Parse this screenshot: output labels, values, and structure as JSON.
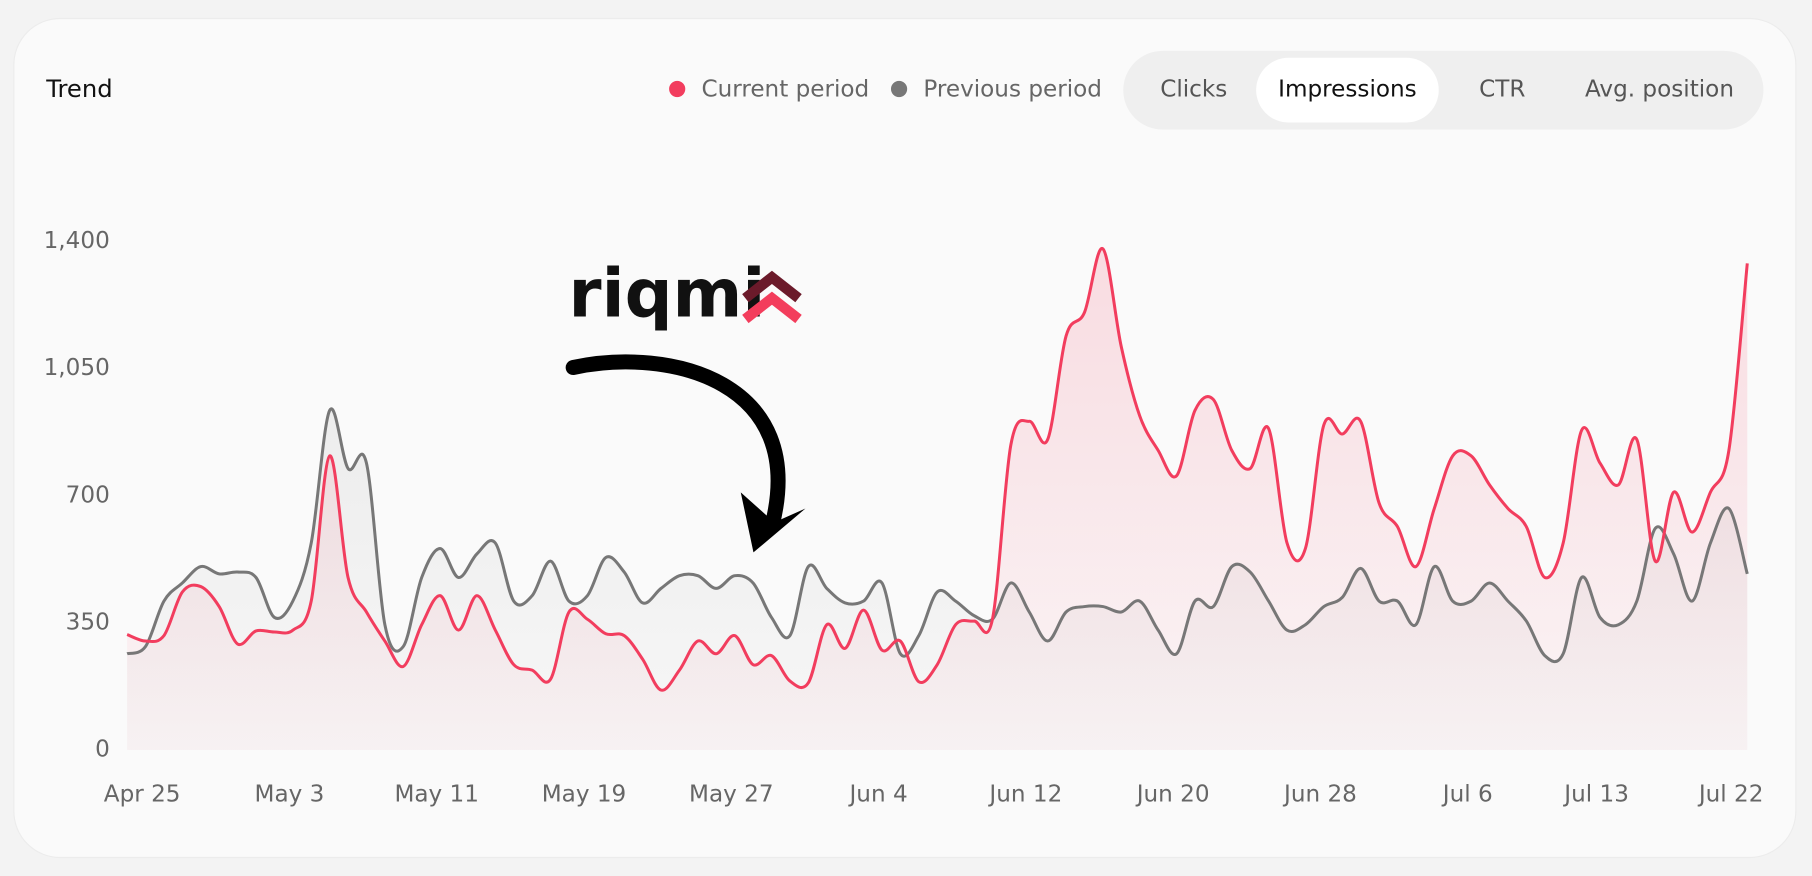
{
  "card": {
    "title": "Trend"
  },
  "tabs": {
    "items": [
      "Clicks",
      "Impressions",
      "CTR",
      "Avg. position"
    ],
    "selected": 1
  },
  "watermark": {
    "text": "riqmi"
  },
  "chart_data": {
    "type": "line",
    "categories": [
      "Apr 25",
      null,
      null,
      null,
      null,
      null,
      null,
      null,
      "May 3",
      null,
      null,
      null,
      null,
      null,
      null,
      null,
      "May 11",
      null,
      null,
      null,
      null,
      null,
      null,
      null,
      "May 19",
      null,
      null,
      null,
      null,
      null,
      null,
      null,
      "May 27",
      null,
      null,
      null,
      null,
      null,
      null,
      null,
      "Jun 4",
      null,
      null,
      null,
      null,
      null,
      null,
      null,
      "Jun 12",
      null,
      null,
      null,
      null,
      null,
      null,
      null,
      "Jun 20",
      null,
      null,
      null,
      null,
      null,
      null,
      null,
      "Jun 28",
      null,
      null,
      null,
      null,
      null,
      null,
      null,
      "Jul 6",
      null,
      null,
      null,
      null,
      null,
      null,
      "Jul 13",
      null,
      null,
      null,
      null,
      null,
      null,
      null,
      null,
      "Jul 22"
    ],
    "series": [
      {
        "name": "Current period",
        "color": "#f23d5e",
        "values": [
          318,
          300,
          315,
          435,
          450,
          395,
          292,
          328,
          325,
          330,
          410,
          810,
          475,
          380,
          300,
          230,
          345,
          425,
          330,
          425,
          330,
          235,
          220,
          195,
          380,
          360,
          320,
          315,
          250,
          165,
          220,
          300,
          265,
          315,
          235,
          260,
          190,
          185,
          345,
          280,
          385,
          275,
          300,
          188,
          235,
          345,
          355,
          360,
          840,
          905,
          855,
          1140,
          1205,
          1380,
          1110,
          920,
          825,
          755,
          935,
          965,
          825,
          775,
          885,
          570,
          555,
          895,
          870,
          905,
          680,
          615,
          505,
          665,
          810,
          810,
          730,
          665,
          615,
          475,
          570,
          880,
          790,
          730,
          855,
          520,
          710,
          600,
          710,
          825,
          1340
        ]
      },
      {
        "name": "Previous period",
        "color": "#777777",
        "values": [
          265,
          285,
          410,
          460,
          505,
          485,
          490,
          475,
          365,
          410,
          570,
          935,
          775,
          790,
          345,
          285,
          475,
          555,
          475,
          540,
          570,
          410,
          425,
          520,
          410,
          425,
          530,
          490,
          405,
          445,
          480,
          480,
          445,
          480,
          460,
          365,
          315,
          505,
          445,
          405,
          410,
          460,
          265,
          315,
          435,
          410,
          370,
          360,
          460,
          380,
          300,
          380,
          395,
          395,
          380,
          410,
          330,
          265,
          410,
          395,
          505,
          490,
          410,
          330,
          345,
          395,
          420,
          500,
          410,
          410,
          345,
          505,
          410,
          410,
          460,
          410,
          355,
          260,
          265,
          475,
          365,
          345,
          410,
          610,
          540,
          410,
          570,
          665,
          485
        ]
      }
    ],
    "ylim": [
      0,
      1400
    ],
    "yticks": [
      0,
      350,
      700,
      {
        "value": 1050,
        "label": "1,050"
      },
      {
        "value": 1400,
        "label": "1,400"
      }
    ],
    "grid": false
  }
}
